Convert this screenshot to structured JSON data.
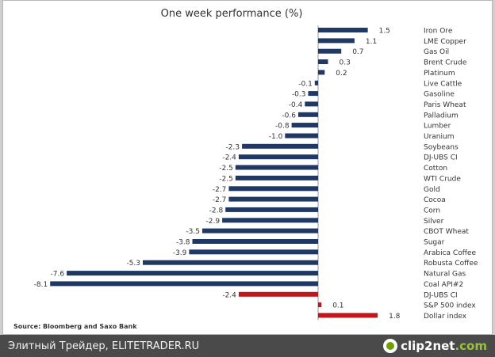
{
  "chart_data": {
    "type": "bar",
    "orientation": "horizontal",
    "title": "One week performance (%)",
    "source": "Source: Bloomberg and Saxo Bank",
    "categories": [
      "Iron Ore",
      "LME Copper",
      "Gas Oil",
      "Brent Crude",
      "Platinum",
      "Live Cattle",
      "Gasoline",
      "Paris Wheat",
      "Palladium",
      "Lumber",
      "Uranium",
      "Soybeans",
      "DJ-UBS CI",
      "Cotton",
      "WTI Crude",
      "Gold",
      "Cocoa",
      "Corn",
      "Silver",
      "CBOT Wheat",
      "Sugar",
      "Arabica Coffee",
      "Robusta Coffee",
      "Natural Gas",
      "Coal API#2",
      "DJ-UBS CI",
      "S&P 500 index",
      "Dollar index"
    ],
    "value_labels": [
      "1.5",
      "1.1",
      "0.7",
      "0.3",
      "0.2",
      "-0.1",
      "-0.3",
      "-0.4",
      "-0.6",
      "-0.8",
      "-1.0",
      "-2.3",
      "-2.4",
      "-2.5",
      "-2.5",
      "-2.7",
      "-2.7",
      "-2.8",
      "-2.9",
      "-3.5",
      "-3.8",
      "-3.9",
      "-5.3",
      "-7.6",
      "-8.1",
      "-2.4",
      "0.1",
      "1.8"
    ],
    "values": [
      1.5,
      1.1,
      0.7,
      0.3,
      0.2,
      -0.1,
      -0.3,
      -0.4,
      -0.6,
      -0.8,
      -1.0,
      -2.3,
      -2.4,
      -2.5,
      -2.5,
      -2.7,
      -2.7,
      -2.8,
      -2.9,
      -3.5,
      -3.8,
      -3.9,
      -5.3,
      -7.6,
      -8.1,
      -2.4,
      0.1,
      1.8
    ],
    "bar_colors": [
      "#1f3864",
      "#1f3864",
      "#1f3864",
      "#1f3864",
      "#1f3864",
      "#1f3864",
      "#1f3864",
      "#1f3864",
      "#1f3864",
      "#1f3864",
      "#1f3864",
      "#1f3864",
      "#1f3864",
      "#1f3864",
      "#1f3864",
      "#1f3864",
      "#1f3864",
      "#1f3864",
      "#1f3864",
      "#1f3864",
      "#1f3864",
      "#1f3864",
      "#1f3864",
      "#1f3864",
      "#1f3864",
      "#c0171c",
      "#c0171c",
      "#c0171c"
    ],
    "xlim": [
      -8.1,
      1.8
    ],
    "grid": false,
    "legend": false
  },
  "footer": {
    "caption": "Элитный Трейдер, ELITETRADER.RU",
    "logo_main": "clip2net",
    "logo_suffix": ".com"
  },
  "colors": {
    "negative_bar": "#1f3864",
    "highlight_bar": "#c0171c",
    "text": "#333333"
  }
}
